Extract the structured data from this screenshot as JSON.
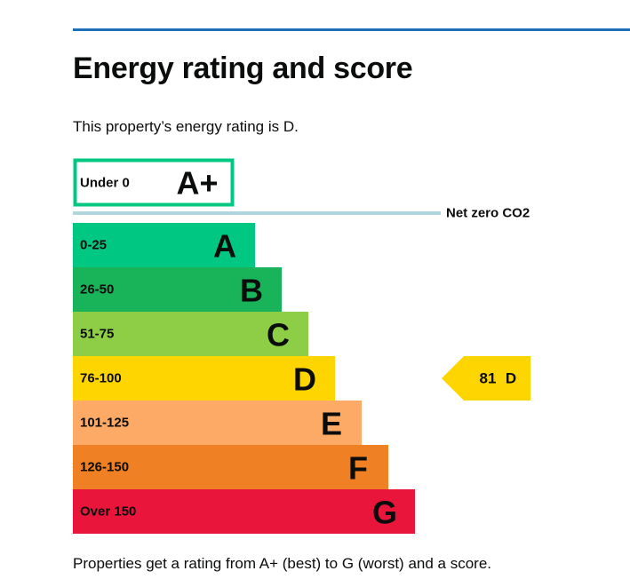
{
  "page": {
    "title": "Energy rating and score",
    "summary": "This property’s energy rating is D.",
    "footer": "Properties get a rating from A+ (best) to G (worst) and a score."
  },
  "chart_data": {
    "type": "bar",
    "bands": [
      {
        "range": "Under 0",
        "letter": "A+",
        "color": "#00c781",
        "outline": true
      },
      {
        "range": "0-25",
        "letter": "A",
        "color": "#00c781"
      },
      {
        "range": "26-50",
        "letter": "B",
        "color": "#19b459"
      },
      {
        "range": "51-75",
        "letter": "C",
        "color": "#8dce46"
      },
      {
        "range": "76-100",
        "letter": "D",
        "color": "#ffd500"
      },
      {
        "range": "101-125",
        "letter": "E",
        "color": "#fcaa65"
      },
      {
        "range": "126-150",
        "letter": "F",
        "color": "#ef8023"
      },
      {
        "range": "Over 150",
        "letter": "G",
        "color": "#e9153b"
      }
    ],
    "net_zero_label": "Net zero CO2",
    "net_zero_color": "#b1d4dd",
    "current": {
      "score": 81,
      "letter": "D",
      "color": "#ffd500"
    }
  }
}
